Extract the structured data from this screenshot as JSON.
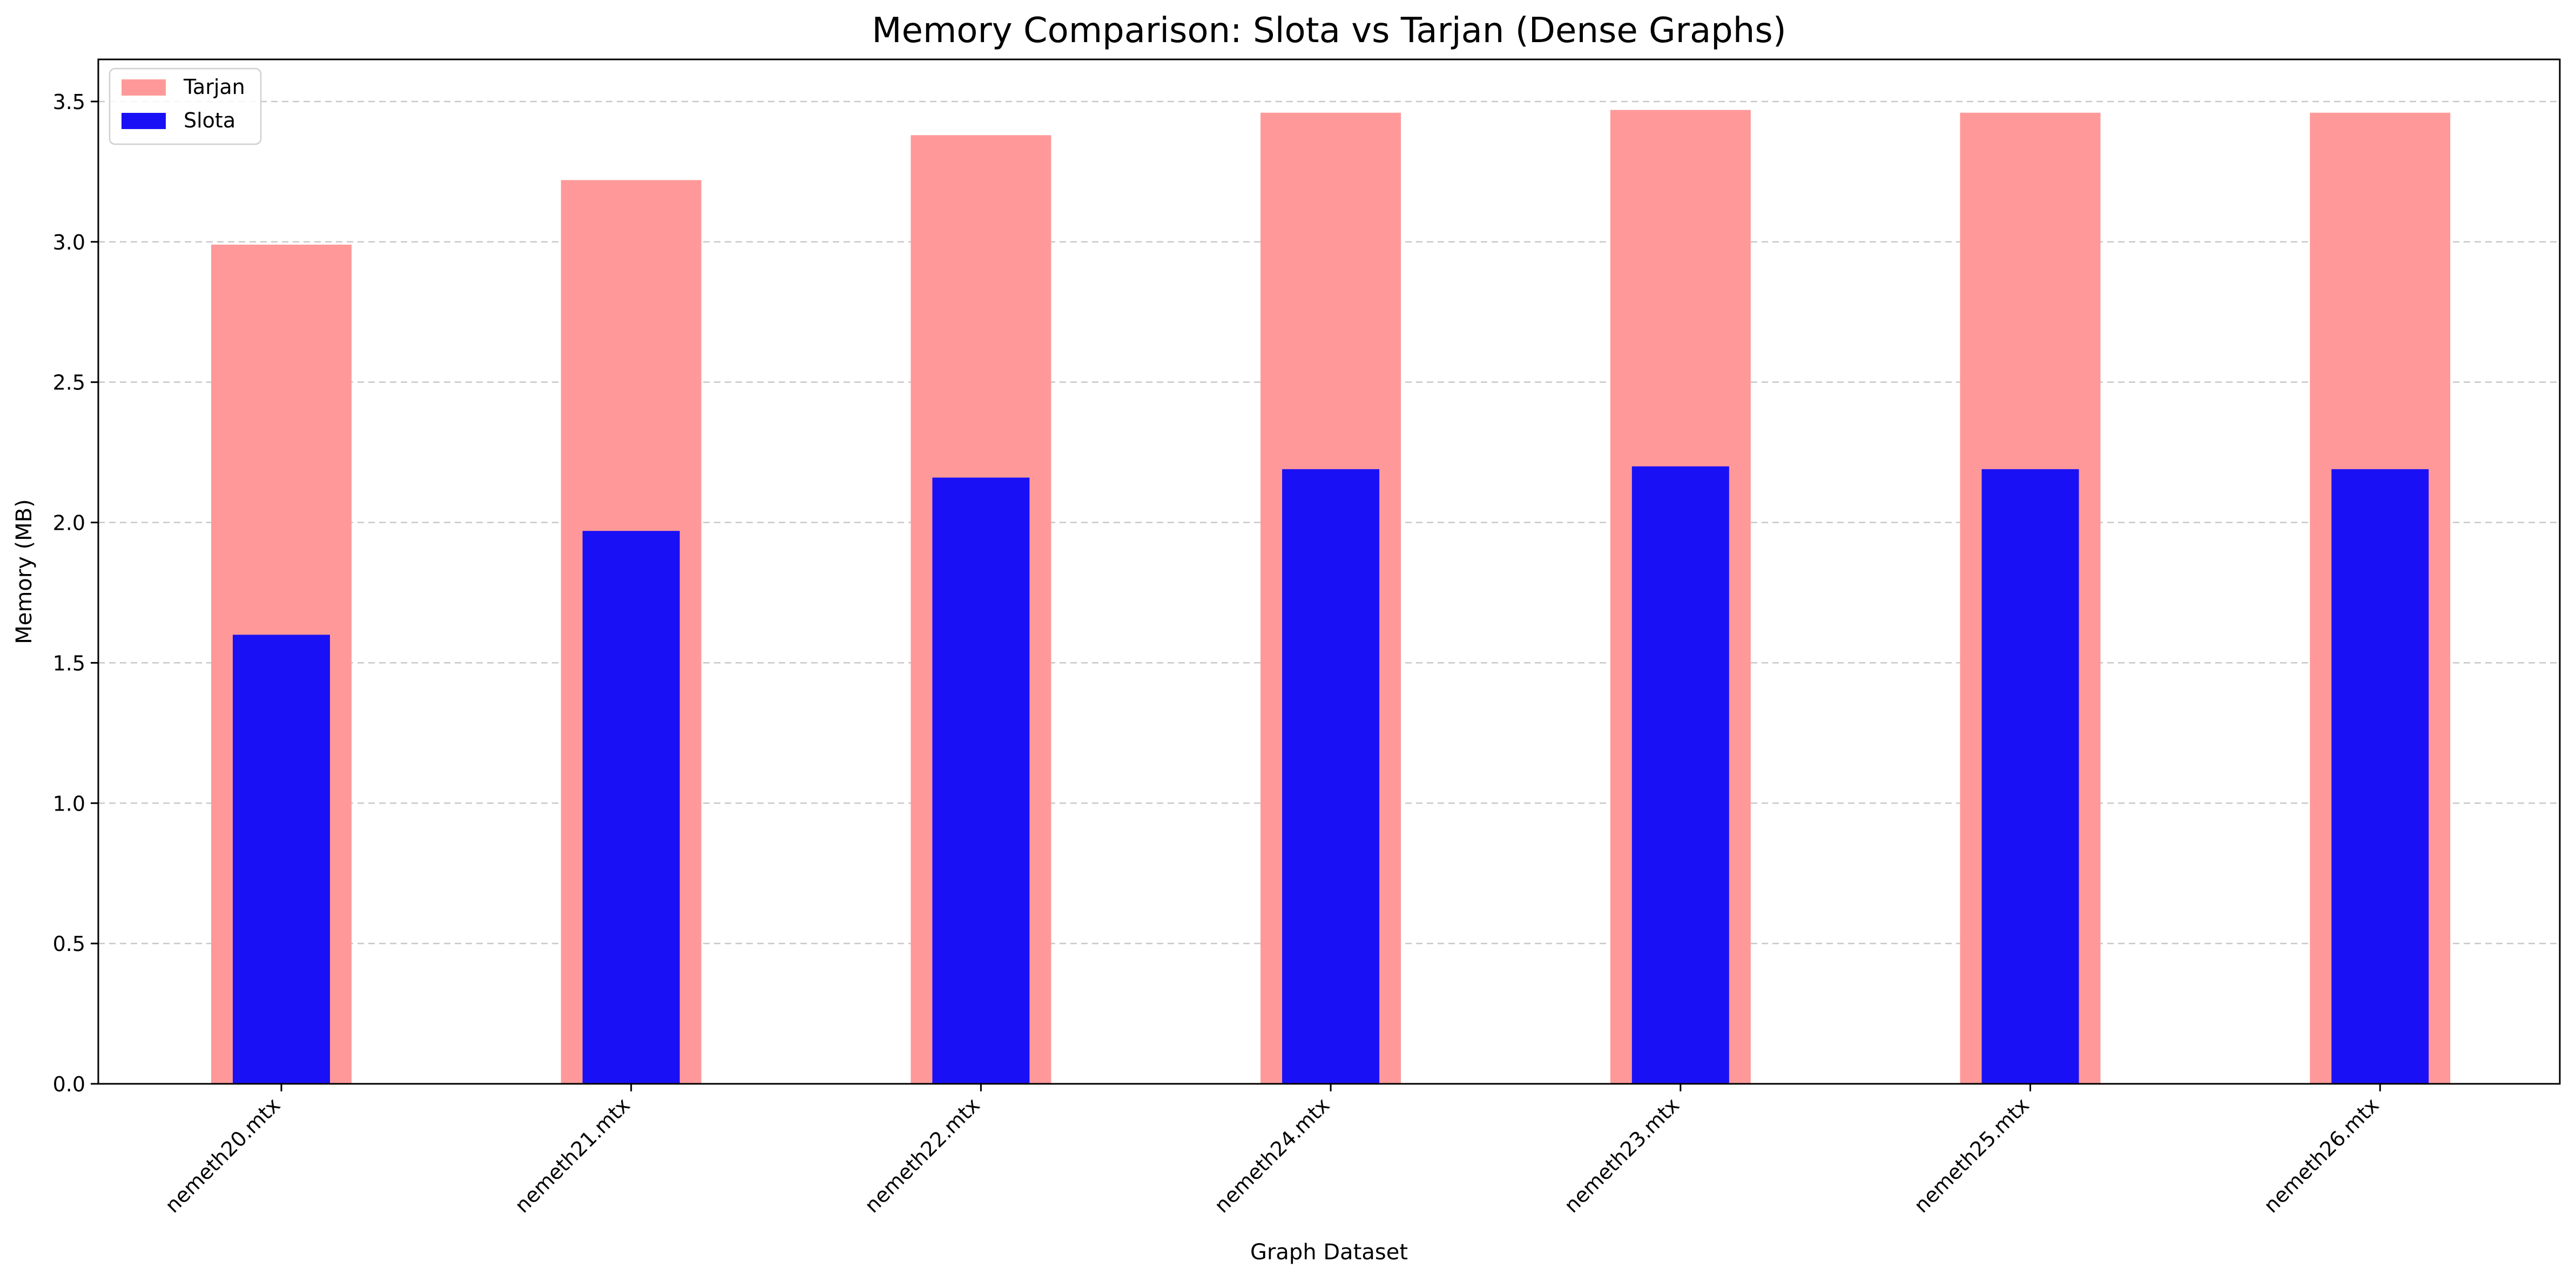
{
  "chart_data": {
    "type": "bar",
    "title": "Memory Comparison: Slota vs Tarjan (Dense Graphs)",
    "xlabel": "Graph Dataset",
    "ylabel": "Memory (MB)",
    "categories": [
      "nemeth20.mtx",
      "nemeth21.mtx",
      "nemeth22.mtx",
      "nemeth24.mtx",
      "nemeth23.mtx",
      "nemeth25.mtx",
      "nemeth26.mtx"
    ],
    "series": [
      {
        "name": "Tarjan",
        "color": "#ff9999",
        "values": [
          2.99,
          3.22,
          3.38,
          3.46,
          3.47,
          3.46,
          3.46
        ]
      },
      {
        "name": "Slota",
        "color": "#1a10f5",
        "values": [
          1.6,
          1.97,
          2.16,
          2.19,
          2.2,
          2.19,
          2.19
        ]
      }
    ],
    "ylim": [
      0,
      3.65
    ],
    "yticks": [
      0.0,
      0.5,
      1.0,
      1.5,
      2.0,
      2.5,
      3.0,
      3.5
    ],
    "ytick_labels": [
      "0.0",
      "0.5",
      "1.0",
      "1.5",
      "2.0",
      "2.5",
      "3.0",
      "3.5"
    ],
    "grid": "horizontal dashed",
    "legend": "top-left"
  }
}
